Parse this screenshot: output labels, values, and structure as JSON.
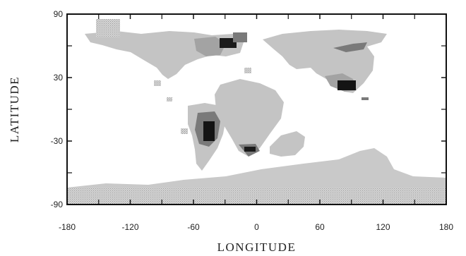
{
  "map": {
    "x_axis": {
      "label": "LONGITUDE",
      "range": [
        -180,
        180
      ],
      "ticks": [
        -180,
        -120,
        -60,
        0,
        60,
        120,
        180
      ],
      "tick_labels": [
        "-180",
        "-120",
        "-60",
        "0",
        "60",
        "120",
        "180"
      ]
    },
    "y_axis": {
      "label": "LATITUDE",
      "range": [
        -90,
        90
      ],
      "ticks": [
        -90,
        -30,
        30,
        90
      ],
      "tick_labels": [
        "-90",
        "-30",
        "30",
        "90"
      ]
    },
    "shading_levels": {
      "light": "#c4c4c4",
      "medium": "#a3a3a3",
      "dark": "#6e6e6e",
      "darkest": "#141414"
    }
  }
}
